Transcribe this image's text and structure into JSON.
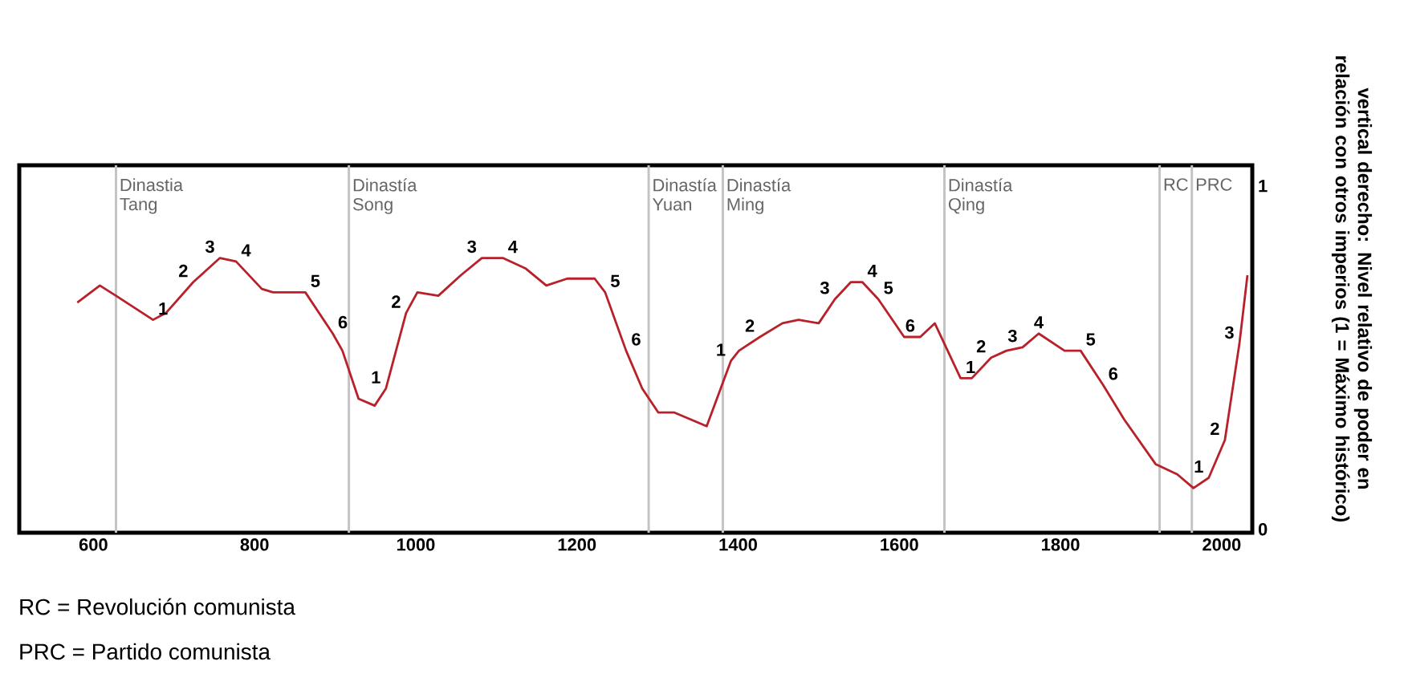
{
  "chart_data": {
    "type": "line",
    "ylabel": "vertical derecho: Nivel relativo de poder en relación con otros imperios (1 = Máximo histórico)",
    "xlim": [
      508,
      2038
    ],
    "ylim": [
      -0.01,
      1.06
    ],
    "xticks": [
      600,
      800,
      1000,
      1200,
      1400,
      1600,
      1800,
      2000
    ],
    "yticks": [
      0,
      1
    ],
    "grid": false,
    "marker": "none",
    "line_style": "solid",
    "series": [
      {
        "color": "#b8202a",
        "x": [
          580,
          608,
          628,
          674,
          690,
          724,
          757,
          777,
          809,
          823,
          863,
          897,
          909,
          929,
          949,
          963,
          988,
          1002,
          1028,
          1056,
          1082,
          1108,
          1136,
          1162,
          1188,
          1222,
          1235,
          1261,
          1281,
          1301,
          1321,
          1341,
          1361,
          1391,
          1401,
          1427,
          1455,
          1475,
          1500,
          1520,
          1540,
          1554,
          1574,
          1606,
          1626,
          1644,
          1660,
          1676,
          1690,
          1714,
          1733,
          1753,
          1773,
          1805,
          1825,
          1853,
          1879,
          1918,
          1945,
          1965,
          1984,
          2004,
          2022,
          2032
        ],
        "values": [
          0.66,
          0.71,
          0.68,
          0.61,
          0.63,
          0.72,
          0.79,
          0.78,
          0.7,
          0.69,
          0.69,
          0.57,
          0.52,
          0.38,
          0.36,
          0.41,
          0.63,
          0.69,
          0.68,
          0.74,
          0.79,
          0.79,
          0.76,
          0.71,
          0.73,
          0.73,
          0.69,
          0.52,
          0.41,
          0.34,
          0.34,
          0.32,
          0.3,
          0.49,
          0.52,
          0.56,
          0.6,
          0.61,
          0.6,
          0.67,
          0.72,
          0.72,
          0.67,
          0.56,
          0.56,
          0.6,
          0.52,
          0.44,
          0.44,
          0.5,
          0.52,
          0.53,
          0.57,
          0.52,
          0.52,
          0.42,
          0.32,
          0.19,
          0.16,
          0.12,
          0.15,
          0.26,
          0.54,
          0.74
        ]
      }
    ],
    "ref_lines": [
      {
        "axis": "x",
        "value": 628,
        "label": "Dinastia Tang",
        "color": "#c4c4c4"
      },
      {
        "axis": "x",
        "value": 917,
        "label": "Dinastía Song",
        "color": "#c4c4c4"
      },
      {
        "axis": "x",
        "value": 1289,
        "label": "Dinastía Yuan",
        "color": "#c4c4c4"
      },
      {
        "axis": "x",
        "value": 1381,
        "label": "Dinastía Ming",
        "color": "#c4c4c4"
      },
      {
        "axis": "x",
        "value": 1656,
        "label": "Dinastía Qing",
        "color": "#c4c4c4"
      },
      {
        "axis": "x",
        "value": 1923,
        "label": "RC",
        "color": "#c4c4c4"
      },
      {
        "axis": "x",
        "value": 1963,
        "label": "PRC",
        "color": "#c4c4c4"
      }
    ],
    "annotations": [
      {
        "text": "1",
        "x": 674,
        "y": 0.61
      },
      {
        "text": "2",
        "x": 724,
        "y": 0.72
      },
      {
        "text": "3",
        "x": 757,
        "y": 0.79
      },
      {
        "text": "4",
        "x": 777,
        "y": 0.78
      },
      {
        "text": "5",
        "x": 863,
        "y": 0.69
      },
      {
        "text": "6",
        "x": 897,
        "y": 0.57
      },
      {
        "text": "1",
        "x": 963,
        "y": 0.41
      },
      {
        "text": "2",
        "x": 988,
        "y": 0.63
      },
      {
        "text": "3",
        "x": 1082,
        "y": 0.79
      },
      {
        "text": "4",
        "x": 1108,
        "y": 0.79
      },
      {
        "text": "5",
        "x": 1235,
        "y": 0.69
      },
      {
        "text": "6",
        "x": 1261,
        "y": 0.52
      },
      {
        "text": "1",
        "x": 1391,
        "y": 0.49
      },
      {
        "text": "2",
        "x": 1427,
        "y": 0.56
      },
      {
        "text": "3",
        "x": 1520,
        "y": 0.67
      },
      {
        "text": "4",
        "x": 1554,
        "y": 0.72
      },
      {
        "text": "5",
        "x": 1574,
        "y": 0.67
      },
      {
        "text": "6",
        "x": 1626,
        "y": 0.56
      },
      {
        "text": "1",
        "x": 1676,
        "y": 0.44
      },
      {
        "text": "2",
        "x": 1714,
        "y": 0.5
      },
      {
        "text": "3",
        "x": 1753,
        "y": 0.53
      },
      {
        "text": "4",
        "x": 1773,
        "y": 0.57
      },
      {
        "text": "5",
        "x": 1825,
        "y": 0.52
      },
      {
        "text": "6",
        "x": 1853,
        "y": 0.42
      },
      {
        "text": "1",
        "x": 1984,
        "y": 0.15
      },
      {
        "text": "2",
        "x": 2004,
        "y": 0.26
      },
      {
        "text": "3",
        "x": 2022,
        "y": 0.54
      },
      "RC = Revolución comunista",
      "PRC = Partido comunista"
    ]
  }
}
